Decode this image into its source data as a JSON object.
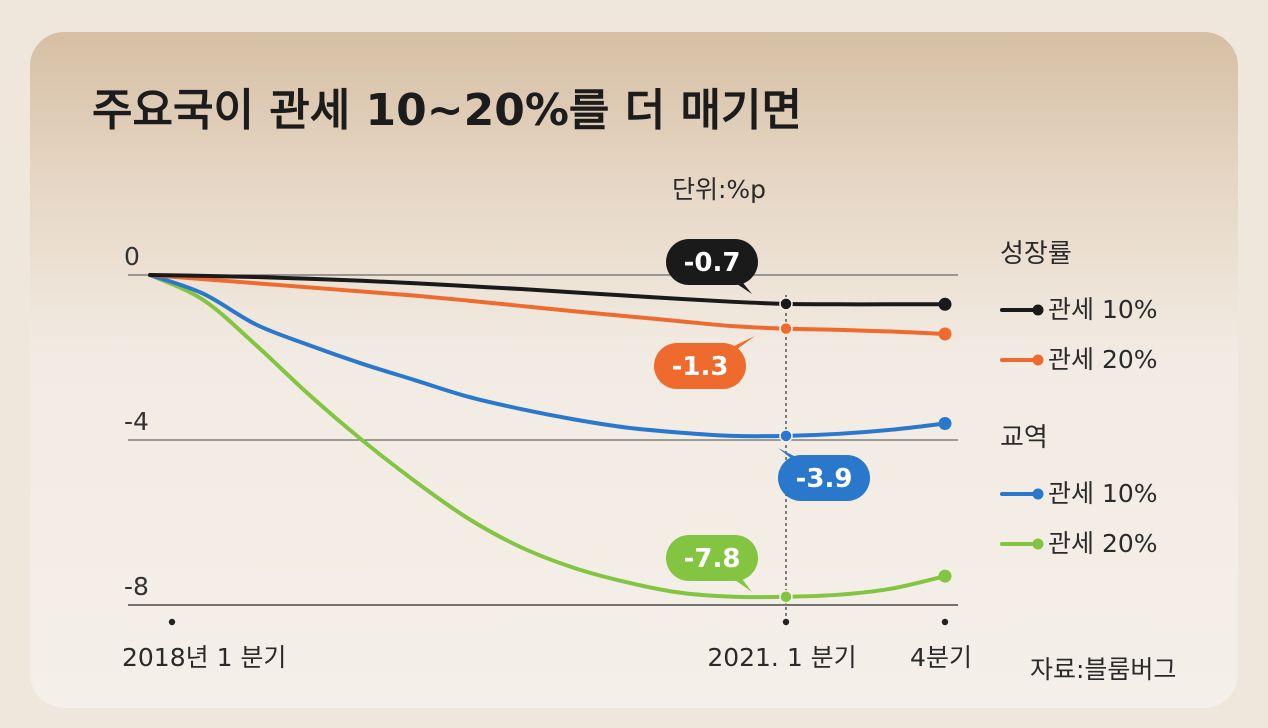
{
  "title": "주요국이 관세 10~20%를 더 매기면",
  "unit": "단위:%p",
  "source": "자료:블룸버그",
  "chart_data": {
    "type": "line",
    "title": "주요국이 관세 10~20%를 더 매기면",
    "unit_label": "단위:%p",
    "x_tick_labels": [
      "2018년 1 분기",
      "2021. 1 분기",
      "4분기"
    ],
    "y_tick_labels": [
      "0",
      "-4",
      "-8"
    ],
    "ylim": [
      -8,
      0
    ],
    "grid": "horizontal",
    "legend_groups": [
      {
        "title": "성장률",
        "entries": [
          "관세 10%",
          "관세 20%"
        ]
      },
      {
        "title": "교역",
        "entries": [
          "관세 10%",
          "관세 20%"
        ]
      }
    ],
    "series": [
      {
        "group": "성장률",
        "name": "관세 10%",
        "color": "#1a1a1a",
        "x": [
          0,
          1,
          2,
          3,
          4,
          5,
          6,
          7,
          8,
          9,
          10,
          11,
          12,
          13,
          14,
          15
        ],
        "y": [
          0,
          -0.02,
          -0.05,
          -0.09,
          -0.14,
          -0.2,
          -0.27,
          -0.34,
          -0.42,
          -0.5,
          -0.58,
          -0.65,
          -0.7,
          -0.71,
          -0.71,
          -0.71
        ]
      },
      {
        "group": "성장률",
        "name": "관세 20%",
        "color": "#ee6a2d",
        "x": [
          0,
          1,
          2,
          3,
          4,
          5,
          6,
          7,
          8,
          9,
          10,
          11,
          12,
          13,
          14,
          15
        ],
        "y": [
          0,
          -0.1,
          -0.2,
          -0.3,
          -0.4,
          -0.5,
          -0.62,
          -0.75,
          -0.88,
          -1.0,
          -1.12,
          -1.24,
          -1.3,
          -1.33,
          -1.37,
          -1.43
        ]
      },
      {
        "group": "교역",
        "name": "관세 10%",
        "color": "#2a78cc",
        "x": [
          0,
          1,
          2,
          3,
          4,
          5,
          6,
          7,
          8,
          9,
          10,
          11,
          12,
          13,
          14,
          15
        ],
        "y": [
          0,
          -0.45,
          -1.2,
          -1.7,
          -2.15,
          -2.55,
          -2.95,
          -3.25,
          -3.5,
          -3.7,
          -3.82,
          -3.9,
          -3.9,
          -3.85,
          -3.75,
          -3.6
        ]
      },
      {
        "group": "교역",
        "name": "관세 20%",
        "color": "#83c441",
        "x": [
          0,
          1,
          2,
          3,
          4,
          5,
          6,
          7,
          8,
          9,
          10,
          11,
          12,
          13,
          14,
          15
        ],
        "y": [
          0,
          -0.6,
          -1.7,
          -2.9,
          -4.0,
          -5.0,
          -5.9,
          -6.6,
          -7.1,
          -7.45,
          -7.7,
          -7.8,
          -7.8,
          -7.75,
          -7.6,
          -7.3
        ]
      }
    ],
    "x_ticks_at": [
      0,
      12,
      15
    ],
    "highlight_x": 12,
    "callouts": [
      {
        "label": "-0.7",
        "color": "#1a1a1a"
      },
      {
        "label": "-1.3",
        "color": "#ee6a2d"
      },
      {
        "label": "-3.9",
        "color": "#2a78cc"
      },
      {
        "label": "-7.8",
        "color": "#83c441"
      }
    ]
  }
}
